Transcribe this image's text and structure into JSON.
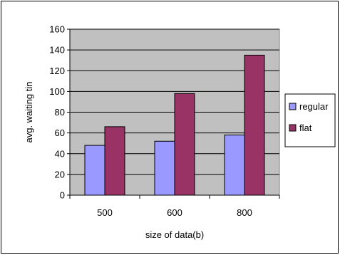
{
  "chart_data": {
    "type": "bar",
    "title": "",
    "xlabel": "size of data(b)",
    "ylabel": "avg. waiting tin",
    "categories": [
      "500",
      "600",
      "800"
    ],
    "series": [
      {
        "name": "regular",
        "values": [
          48,
          52,
          58
        ],
        "color": "#9999ff"
      },
      {
        "name": "flat",
        "values": [
          66,
          98,
          135
        ],
        "color": "#993366"
      }
    ],
    "ylim": [
      0,
      160
    ],
    "yticks": [
      0,
      20,
      40,
      60,
      80,
      100,
      120,
      140,
      160
    ],
    "grid": true,
    "plot_background": "#c0c0c0",
    "legend_position": "right"
  }
}
